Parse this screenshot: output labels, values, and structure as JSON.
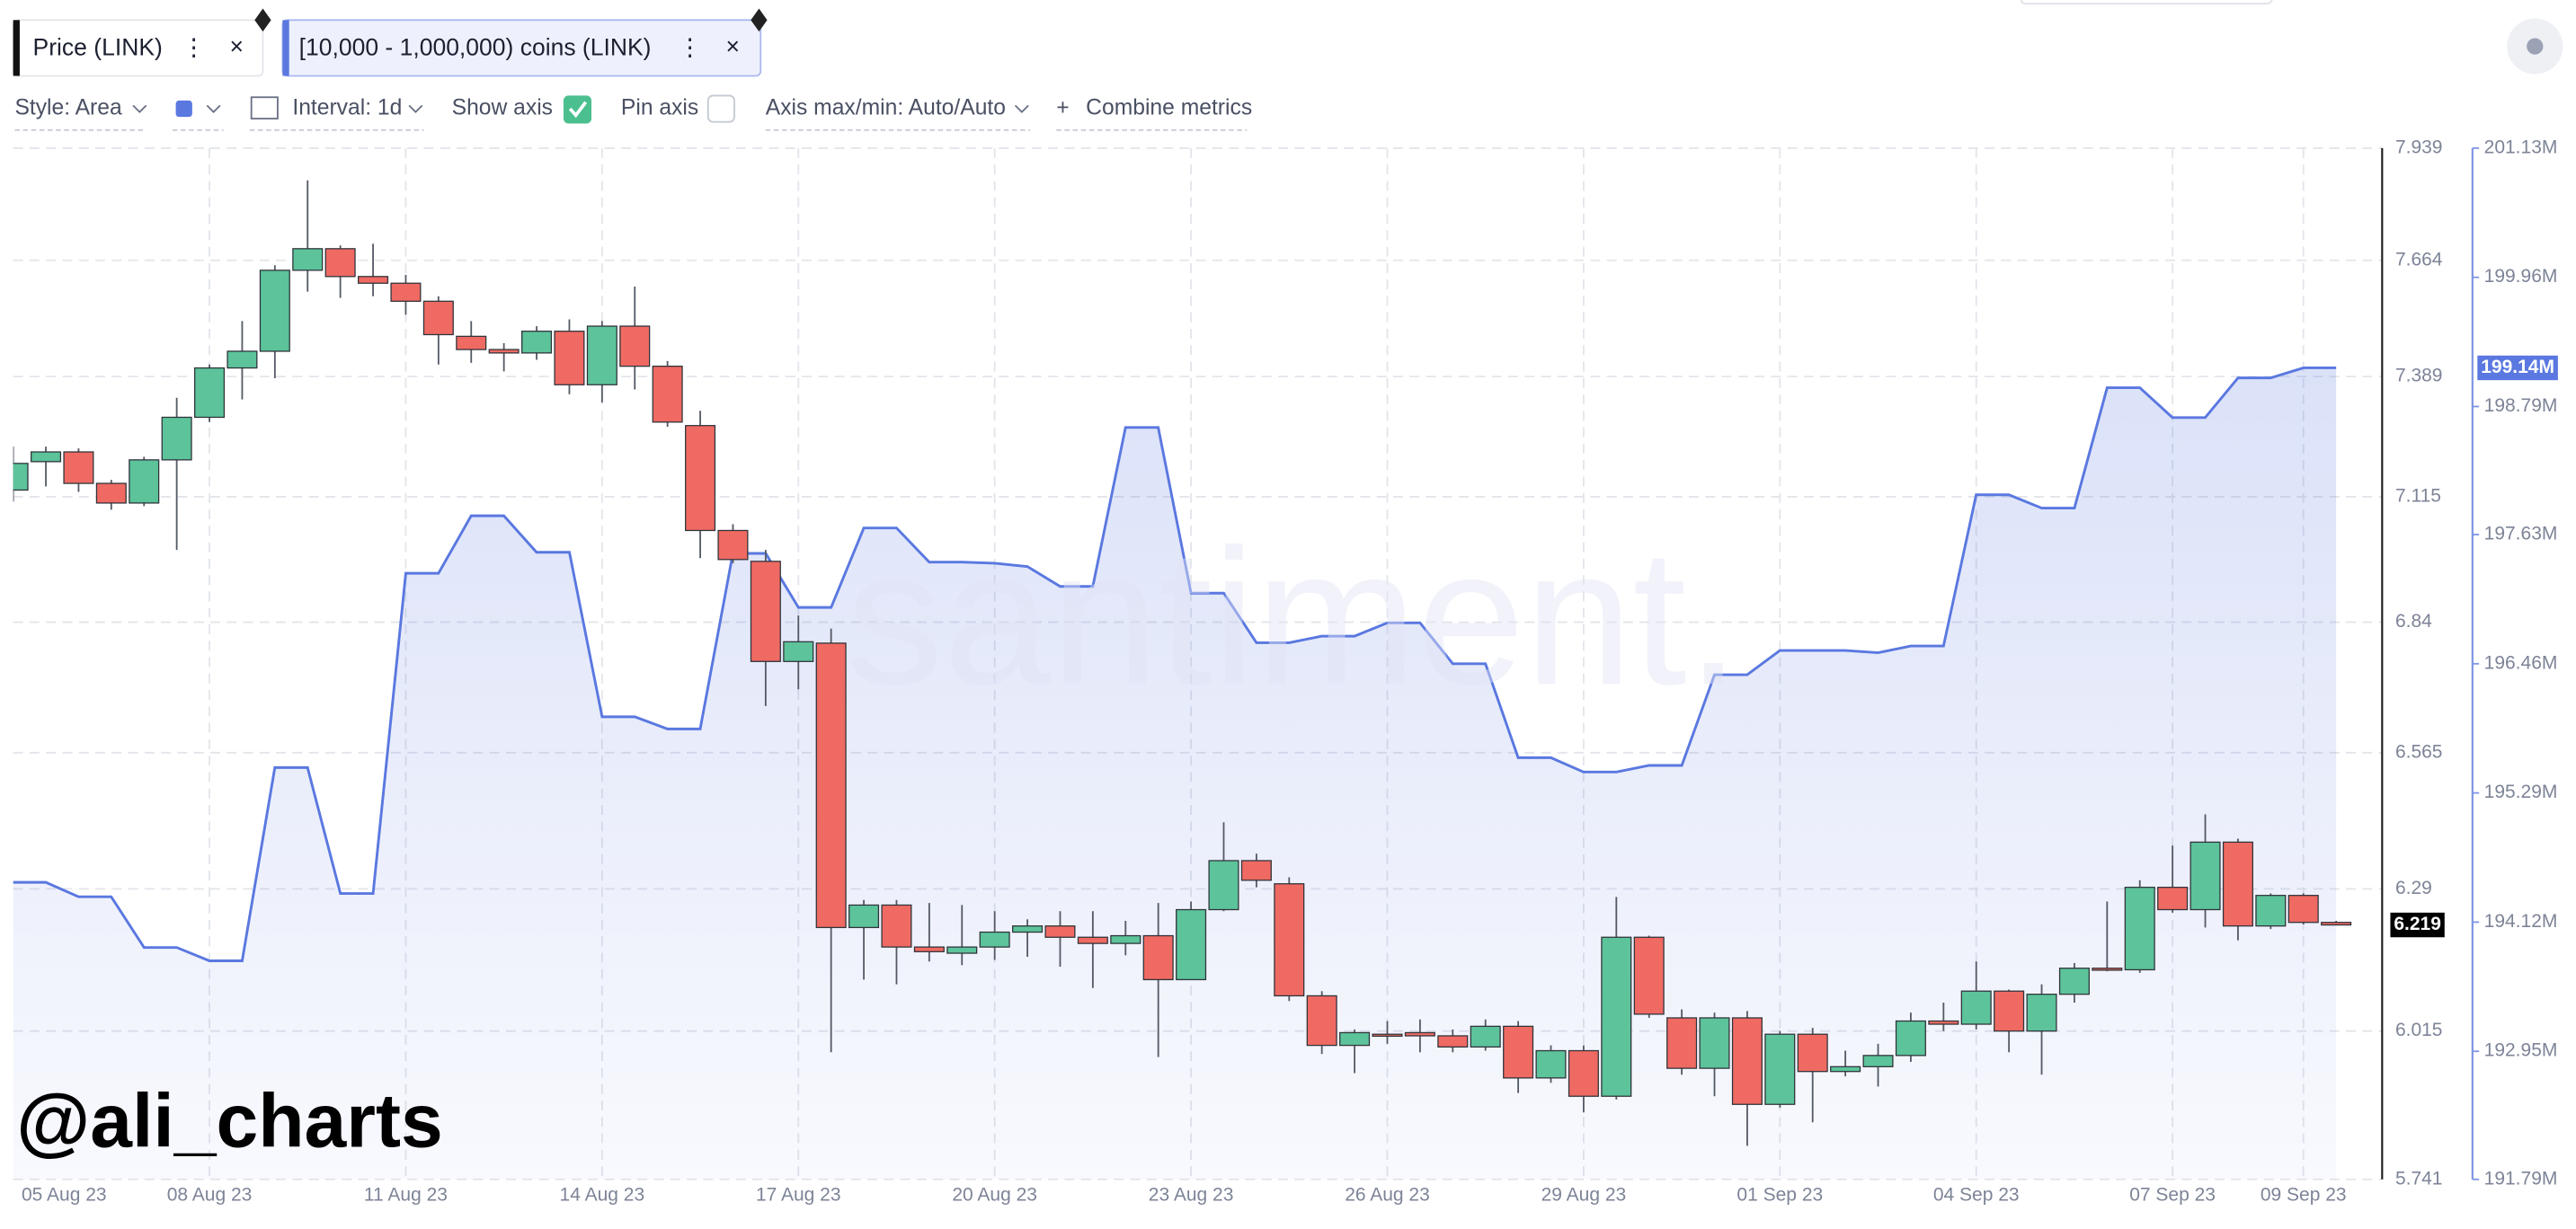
{
  "chart_data": {
    "type": "candlestick",
    "categories": [
      "05 Aug 23",
      null,
      null,
      null,
      null,
      null,
      "08 Aug 23",
      null,
      null,
      null,
      null,
      null,
      "11 Aug 23",
      null,
      null,
      null,
      null,
      null,
      "14 Aug 23",
      null,
      null,
      null,
      null,
      null,
      "17 Aug 23",
      null,
      null,
      null,
      null,
      null,
      "20 Aug 23",
      null,
      null,
      null,
      null,
      null,
      "23 Aug 23",
      null,
      null,
      null,
      null,
      null,
      "26 Aug 23",
      null,
      null,
      null,
      null,
      null,
      "29 Aug 23",
      null,
      null,
      null,
      null,
      null,
      "01 Sep 23",
      null,
      null,
      null,
      null,
      null,
      "04 Sep 23",
      null,
      null,
      null,
      null,
      null,
      "07 Sep 23",
      null,
      null,
      null,
      "09 Sep 23",
      null
    ],
    "series": [
      {
        "name": "Price (LINK)",
        "type": "candlestick",
        "up_color": "#5cc39a",
        "down_color": "#ef6a62",
        "open": [
          7.13,
          7.194,
          7.216,
          7.145,
          7.101,
          7.198,
          7.295,
          7.409,
          7.448,
          7.64,
          7.692,
          7.625,
          7.609,
          7.566,
          7.483,
          7.452,
          7.444,
          7.495,
          7.37,
          7.507,
          7.413,
          7.276,
          7.04,
          6.972,
          6.756,
          6.795,
          6.214,
          6.258,
          6.176,
          6.164,
          6.176,
          6.205,
          6.217,
          6.195,
          6.183,
          6.198,
          6.113,
          6.249,
          6.346,
          6.3,
          6.082,
          5.988,
          6.009,
          6.012,
          6.006,
          5.985,
          6.024,
          5.927,
          5.978,
          5.893,
          6.195,
          6.04,
          5.945,
          6.04,
          5.878,
          6.009,
          5.939,
          5.948,
          5.969,
          6.034,
          6.028,
          6.091,
          6.015,
          6.085,
          6.135,
          6.132,
          6.293,
          6.249,
          6.383,
          6.217,
          6.277,
          6.224
        ],
        "high": [
          7.228,
          7.228,
          7.224,
          7.153,
          7.205,
          7.34,
          7.417,
          7.519,
          7.652,
          7.859,
          7.7,
          7.704,
          7.629,
          7.578,
          7.519,
          7.467,
          7.507,
          7.523,
          7.519,
          7.601,
          7.425,
          7.31,
          7.054,
          6.997,
          6.854,
          6.826,
          6.268,
          6.268,
          6.262,
          6.258,
          6.246,
          6.23,
          6.246,
          6.246,
          6.227,
          6.262,
          6.265,
          6.423,
          6.36,
          6.313,
          6.091,
          6.018,
          6.034,
          6.037,
          6.018,
          6.037,
          6.034,
          5.988,
          5.988,
          6.274,
          6.198,
          6.056,
          6.05,
          6.053,
          6.015,
          6.021,
          5.978,
          5.991,
          6.05,
          6.069,
          6.148,
          6.094,
          6.104,
          6.145,
          6.265,
          6.307,
          6.376,
          6.439,
          6.39,
          6.281,
          6.281,
          6.227
        ],
        "low": [
          7.104,
          7.138,
          7.126,
          7.086,
          7.094,
          6.997,
          7.284,
          7.336,
          7.385,
          7.589,
          7.574,
          7.578,
          7.534,
          7.417,
          7.421,
          7.401,
          7.428,
          7.348,
          7.329,
          7.359,
          7.273,
          6.979,
          6.968,
          6.662,
          6.697,
          5.975,
          6.113,
          6.104,
          6.148,
          6.141,
          6.151,
          6.157,
          6.138,
          6.097,
          6.16,
          5.966,
          6.113,
          6.246,
          6.293,
          6.072,
          5.972,
          5.936,
          5.991,
          5.975,
          5.975,
          5.978,
          5.899,
          5.918,
          5.863,
          5.887,
          6.04,
          5.933,
          5.893,
          5.802,
          5.872,
          5.845,
          5.93,
          5.911,
          5.957,
          6.015,
          6.018,
          5.975,
          5.933,
          6.069,
          6.129,
          6.126,
          6.243,
          6.214,
          6.189,
          6.211,
          6.22,
          6.219
        ],
        "close": [
          7.19,
          7.216,
          7.145,
          7.101,
          7.198,
          7.295,
          7.409,
          7.448,
          7.64,
          7.692,
          7.625,
          7.609,
          7.566,
          7.487,
          7.452,
          7.444,
          7.495,
          7.37,
          7.507,
          7.413,
          7.284,
          7.04,
          6.976,
          6.756,
          6.798,
          6.214,
          6.258,
          6.176,
          6.167,
          6.176,
          6.205,
          6.217,
          6.195,
          6.183,
          6.198,
          6.113,
          6.249,
          6.346,
          6.307,
          6.082,
          5.988,
          6.012,
          6.006,
          6.006,
          5.985,
          6.024,
          5.927,
          5.978,
          5.893,
          6.195,
          6.047,
          5.945,
          6.04,
          5.878,
          6.009,
          5.939,
          5.948,
          5.969,
          6.034,
          6.028,
          6.091,
          6.015,
          6.085,
          6.135,
          6.132,
          6.293,
          6.249,
          6.383,
          6.217,
          6.277,
          6.224,
          6.219
        ]
      },
      {
        "name": "[10,000 - 1,000,000) coins (LINK)",
        "type": "area",
        "axis": "y2",
        "color": "#5a78e0",
        "values": [
          194480000,
          194480000,
          194350000,
          194350000,
          193890000,
          193890000,
          193770000,
          193770000,
          195520000,
          195520000,
          194380000,
          194380000,
          197280000,
          197280000,
          197800000,
          197800000,
          197470000,
          197470000,
          195980000,
          195980000,
          195870000,
          195870000,
          197460000,
          197460000,
          196970000,
          196970000,
          197690000,
          197690000,
          197380000,
          197380000,
          197370000,
          197340000,
          197160000,
          197160000,
          198600000,
          198600000,
          197100000,
          197100000,
          196650000,
          196650000,
          196710000,
          196710000,
          196830000,
          196830000,
          196460000,
          196460000,
          195610000,
          195610000,
          195480000,
          195480000,
          195540000,
          195540000,
          196360000,
          196360000,
          196580000,
          196580000,
          196580000,
          196560000,
          196620000,
          196620000,
          197990000,
          197990000,
          197870000,
          197870000,
          198960000,
          198960000,
          198690000,
          198690000,
          199050000,
          199050000,
          199140000,
          199140000
        ],
        "value_labels": [
          null,
          null,
          null,
          null,
          null,
          null,
          null,
          null,
          null,
          null,
          null,
          null,
          null,
          null,
          null,
          null,
          null,
          null,
          null,
          null,
          null,
          null,
          null,
          null,
          null,
          null,
          null,
          null,
          null,
          null,
          null,
          null,
          null,
          null,
          null,
          null,
          null,
          null,
          null,
          null,
          null,
          null,
          null,
          null,
          null,
          null,
          null,
          null,
          null,
          null,
          null,
          null,
          null,
          null,
          null,
          null,
          null,
          null,
          null,
          null,
          null,
          null,
          null,
          null,
          null,
          null,
          null,
          null,
          null,
          null,
          null,
          "199.14M"
        ]
      }
    ],
    "yscale": "log",
    "ylim": [
      5.741,
      7.939
    ],
    "yticks": [
      7.939,
      7.664,
      7.389,
      7.115,
      6.84,
      6.565,
      6.29,
      6.015,
      5.741
    ],
    "y2lim": [
      191790000,
      201130000
    ],
    "y2ticks": [
      {
        "value": 201130000,
        "label": "201.13M"
      },
      {
        "value": 199960000,
        "label": "199.96M"
      },
      {
        "value": 198790000,
        "label": "198.79M"
      },
      {
        "value": 197630000,
        "label": "197.63M"
      },
      {
        "value": 196460000,
        "label": "196.46M"
      },
      {
        "value": 195290000,
        "label": "195.29M"
      },
      {
        "value": 194120000,
        "label": "194.12M"
      },
      {
        "value": 192950000,
        "label": "192.95M"
      },
      {
        "value": 191790000,
        "label": "191.79M"
      }
    ],
    "grid": true
  },
  "ui": {
    "controls": [
      "Style: Area",
      "Interval: 1d",
      "Show axis",
      "Pin axis",
      "Axis max/min: Auto/Auto",
      "Combine metrics"
    ],
    "watermark": "santiment.",
    "author": "@ali_charts"
  }
}
